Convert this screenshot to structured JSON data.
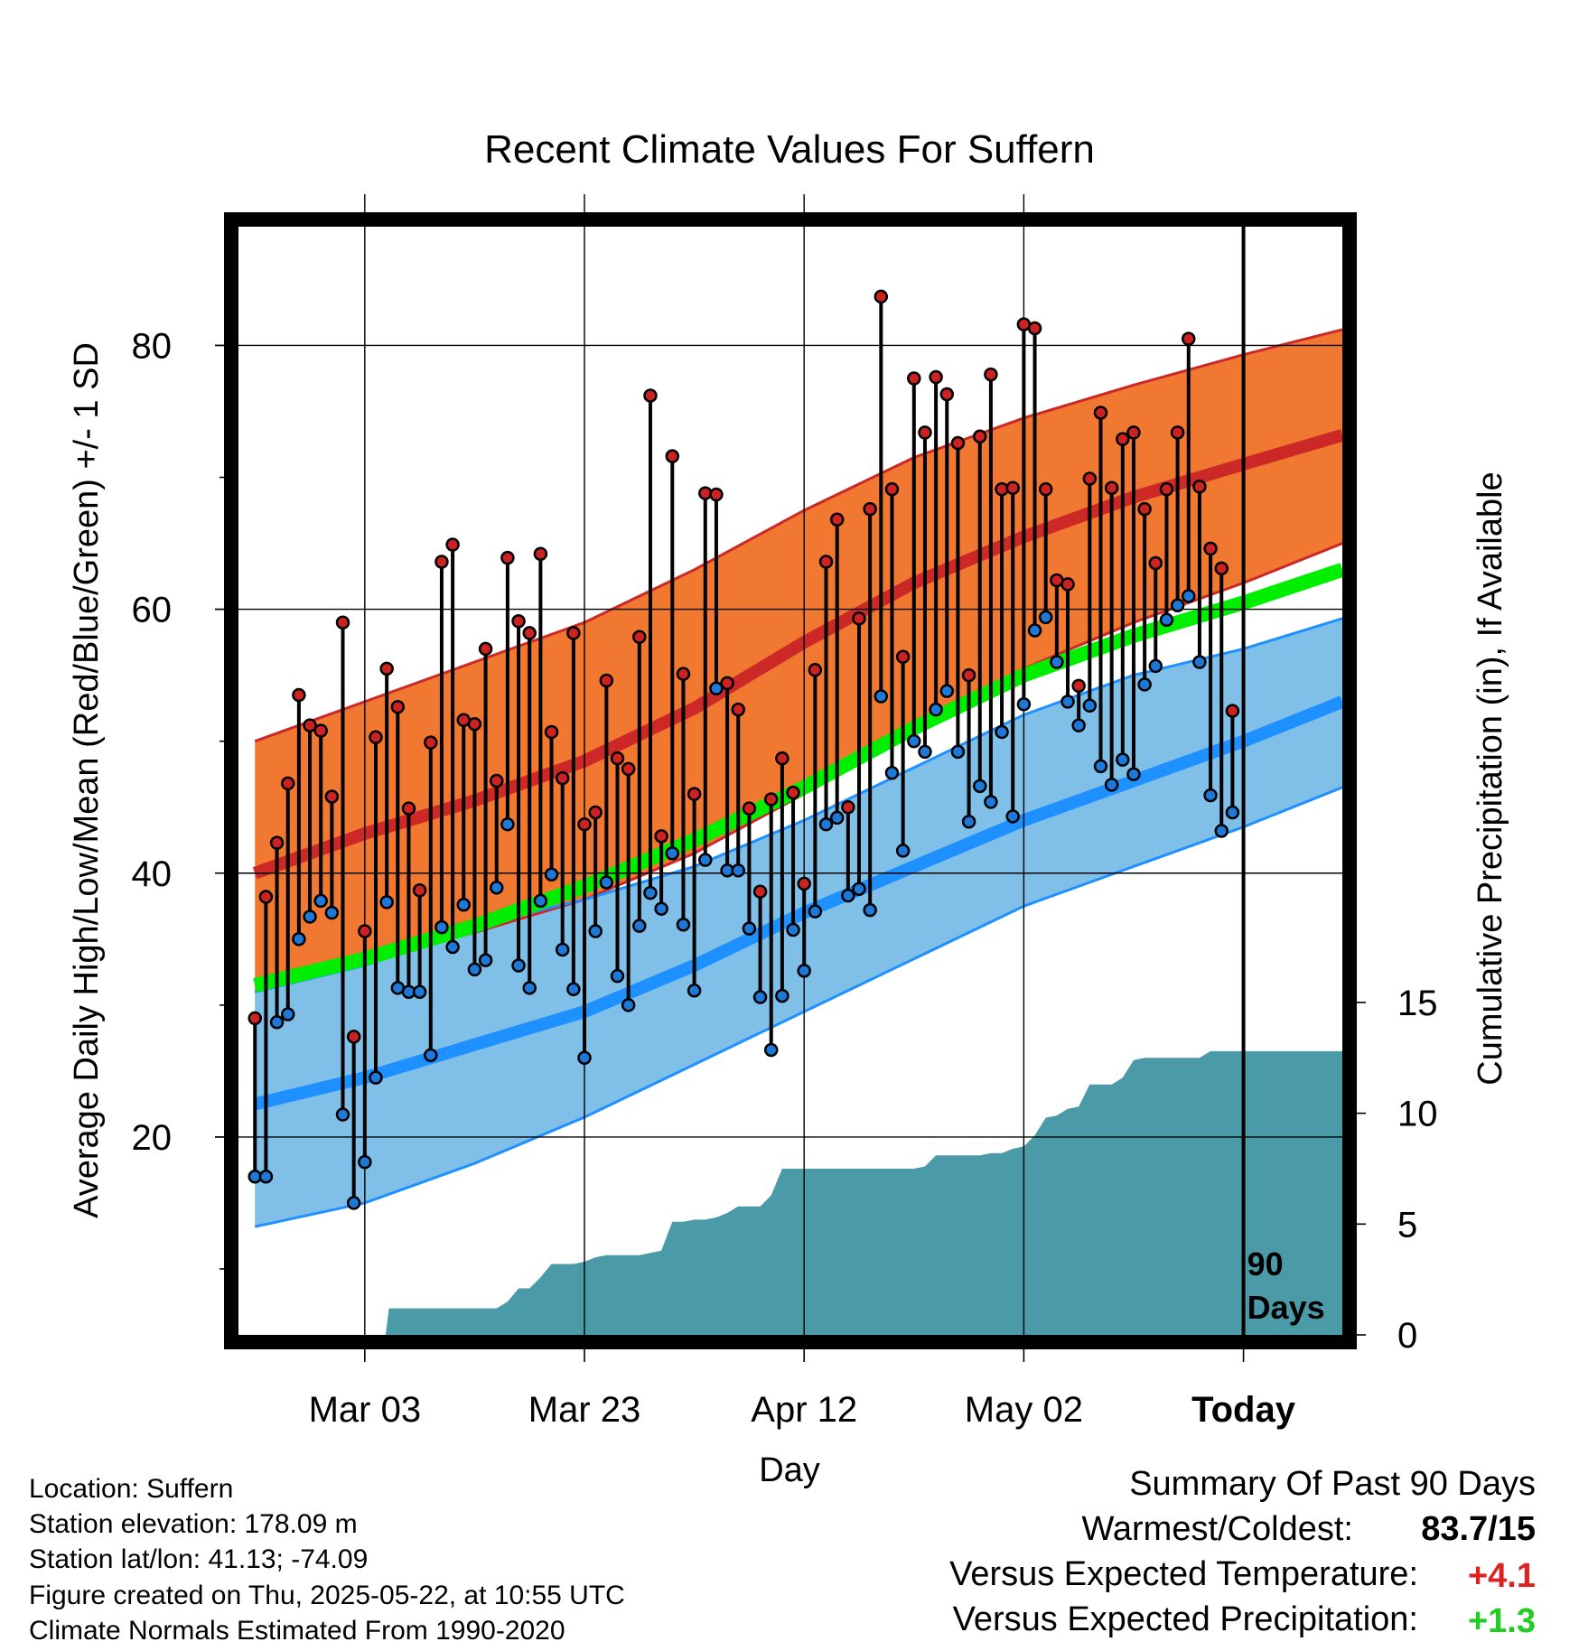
{
  "chart_data": {
    "type": "line",
    "title": "Recent Climate Values For Suffern",
    "xlabel": "Day",
    "ylabel": "Average Daily High/Low/Mean (Red/Blue/Green) +/- 1 SD",
    "y2label": "Cumulative Precipitation (in), If Available",
    "x_ticks": [
      "Mar 03",
      "Mar 23",
      "Apr 12",
      "May 02",
      "Today"
    ],
    "x_tick_days": [
      10,
      30,
      50,
      70,
      90
    ],
    "y_ticks": [
      20,
      40,
      60,
      80
    ],
    "y_range": [
      5,
      89
    ],
    "y2_ticks": [
      0,
      5,
      10,
      15
    ],
    "y2_range": [
      0,
      50
    ],
    "x_range": [
      -1.5,
      99
    ],
    "today_day": 90,
    "today_label": "90\nDays",
    "grid": true,
    "colors": {
      "high_dot": "#cc2222",
      "low_dot": "#1e78d8",
      "normal_high_band": "#f07830",
      "normal_high_line": "#cc2828",
      "normal_low_band": "#80c0e8",
      "normal_low_line": "#1e90ff",
      "normal_mean_line": "#00ee00",
      "precip_fill": "#4a9aa8",
      "anomaly_warm": "#dd2222",
      "anomaly_wet": "#22cc22"
    },
    "normal_high": {
      "days": [
        0,
        10,
        20,
        30,
        40,
        50,
        60,
        70,
        80,
        90,
        99
      ],
      "values": [
        40,
        43,
        45.5,
        48.5,
        52.5,
        57.5,
        62,
        65.5,
        68.5,
        71,
        73.2
      ]
    },
    "normal_high_sd_upper": {
      "days": [
        0,
        10,
        20,
        30,
        40,
        50,
        60,
        70,
        80,
        90,
        99
      ],
      "values": [
        50,
        53,
        56,
        59,
        63,
        67.5,
        71.5,
        74.5,
        77,
        79.3,
        81.2
      ]
    },
    "normal_high_sd_lower": {
      "days": [
        0,
        10,
        20,
        30,
        40,
        50,
        60,
        70,
        80,
        90,
        99
      ],
      "values": [
        31,
        33.5,
        35.5,
        38,
        41.5,
        46,
        51,
        55.5,
        59,
        62,
        65
      ]
    },
    "normal_mean": {
      "days": [
        0,
        10,
        20,
        30,
        40,
        50,
        60,
        70,
        80,
        90,
        99
      ],
      "values": [
        31.5,
        33.5,
        36,
        39,
        42.5,
        46.5,
        51,
        55,
        58,
        60.5,
        63
      ]
    },
    "normal_low": {
      "days": [
        0,
        10,
        20,
        30,
        40,
        50,
        60,
        70,
        80,
        90,
        99
      ],
      "values": [
        22.5,
        24.5,
        27,
        29.5,
        33,
        37,
        40.5,
        44,
        47,
        50,
        53
      ]
    },
    "normal_low_sd_upper": {
      "days": [
        0,
        10,
        20,
        30,
        40,
        50,
        60,
        70,
        80,
        90,
        99
      ],
      "values": [
        31,
        33,
        36,
        38,
        40.5,
        44,
        48,
        52,
        55,
        57,
        59.3
      ]
    },
    "normal_low_sd_lower": {
      "days": [
        0,
        10,
        20,
        30,
        40,
        50,
        60,
        70,
        80,
        90,
        99
      ],
      "values": [
        13.2,
        15,
        18,
        21.5,
        25.5,
        29.5,
        33.5,
        37.5,
        40.5,
        43.5,
        46.5
      ]
    },
    "daily_high": [
      29,
      38.2,
      42.3,
      46.8,
      53.5,
      51.2,
      50.8,
      45.8,
      59,
      27.6,
      35.6,
      50.3,
      55.5,
      52.6,
      44.9,
      38.7,
      49.9,
      63.6,
      64.9,
      51.6,
      51.3,
      57,
      47,
      63.9,
      59.1,
      58.2,
      64.2,
      50.7,
      47.2,
      58.2,
      43.7,
      44.6,
      54.6,
      48.7,
      47.9,
      57.9,
      76.2,
      42.8,
      71.6,
      55.1,
      46,
      68.8,
      68.7,
      54.4,
      52.4,
      44.9,
      38.6,
      45.6,
      48.7,
      46.1,
      39.2,
      55.4,
      63.6,
      66.8,
      45,
      59.3,
      67.6,
      83.7,
      69.1,
      56.4,
      77.5,
      73.4,
      77.6,
      76.3,
      72.6,
      55,
      73.1,
      77.8,
      69.1,
      69.2,
      81.6,
      81.3,
      69.1,
      62.2,
      61.9,
      54.2,
      69.9,
      74.9,
      69.2,
      72.9,
      73.4,
      67.6,
      63.5,
      69.1,
      73.4,
      80.5,
      69.3,
      64.6,
      63.1,
      52.3
    ],
    "daily_low": [
      17,
      17,
      28.7,
      29.3,
      35,
      36.7,
      37.9,
      37,
      21.7,
      15,
      18.1,
      24.5,
      37.8,
      31.3,
      31,
      31,
      26.2,
      35.9,
      34.4,
      37.6,
      32.7,
      33.4,
      38.9,
      43.7,
      33,
      31.3,
      37.9,
      39.9,
      34.2,
      31.2,
      26,
      35.6,
      39.3,
      32.2,
      30,
      36,
      38.5,
      37.3,
      41.5,
      36.1,
      31.1,
      41,
      54,
      40.2,
      40.2,
      35.8,
      30.6,
      26.6,
      30.7,
      35.7,
      32.6,
      37.1,
      43.7,
      44.2,
      38.3,
      38.8,
      37.2,
      53.4,
      47.6,
      41.7,
      50,
      49.2,
      52.4,
      53.8,
      49.2,
      43.9,
      46.6,
      45.4,
      50.7,
      44.3,
      52.8,
      58.4,
      59.4,
      56,
      53,
      51.2,
      52.7,
      48.1,
      46.7,
      48.6,
      47.5,
      54.3,
      55.7,
      59.2,
      60.3,
      61,
      56,
      45.9,
      43.2,
      44.6
    ],
    "cumulative_precip": {
      "days": [
        0,
        11.9,
        12.2,
        22,
        23,
        24,
        25,
        26,
        27,
        28,
        29,
        30,
        31,
        32,
        33,
        34,
        35,
        36,
        37,
        38,
        39,
        40,
        41,
        42,
        43,
        44,
        45,
        46,
        47,
        48,
        49,
        50,
        51,
        52,
        53,
        54,
        55,
        56,
        57,
        58,
        59,
        60,
        61,
        62,
        63,
        64,
        65,
        66,
        67,
        68,
        69,
        70,
        71,
        72,
        73,
        74,
        75,
        76,
        77,
        78,
        79,
        80,
        81,
        82,
        83,
        84,
        85,
        86,
        87,
        88,
        89,
        90,
        91,
        99
      ],
      "values": [
        0,
        0,
        1.2,
        1.2,
        1.5,
        2.1,
        2.1,
        2.6,
        3.2,
        3.2,
        3.2,
        3.3,
        3.5,
        3.6,
        3.6,
        3.6,
        3.6,
        3.7,
        3.8,
        5.1,
        5.1,
        5.2,
        5.2,
        5.3,
        5.5,
        5.8,
        5.8,
        5.8,
        6.3,
        7.5,
        7.5,
        7.5,
        7.5,
        7.5,
        7.5,
        7.5,
        7.5,
        7.5,
        7.5,
        7.5,
        7.5,
        7.5,
        7.6,
        8.1,
        8.1,
        8.1,
        8.1,
        8.1,
        8.2,
        8.2,
        8.4,
        8.5,
        9.0,
        9.8,
        9.9,
        10.2,
        10.3,
        11.3,
        11.3,
        11.3,
        11.6,
        12.4,
        12.5,
        12.5,
        12.5,
        12.5,
        12.5,
        12.5,
        12.8,
        12.8,
        12.8,
        12.8,
        12.8,
        12.8
      ]
    },
    "annotations": {
      "location": "Location: Suffern",
      "elevation": "Station elevation: 178.09 m",
      "latlon": "Station lat/lon: 41.13; -74.09",
      "created": "Figure created on Thu, 2025-05-22, at 10:55 UTC",
      "normals": "Climate Normals Estimated From 1990-2020"
    },
    "summary": {
      "heading": "Summary Of Past 90 Days",
      "warm_cold_label": "Warmest/Coldest:",
      "warm_cold_value": "83.7/15",
      "temp_label": "Versus Expected Temperature:",
      "temp_value": "+4.1",
      "precip_label": "Versus Expected Precipitation:",
      "precip_value": "+1.3"
    }
  }
}
